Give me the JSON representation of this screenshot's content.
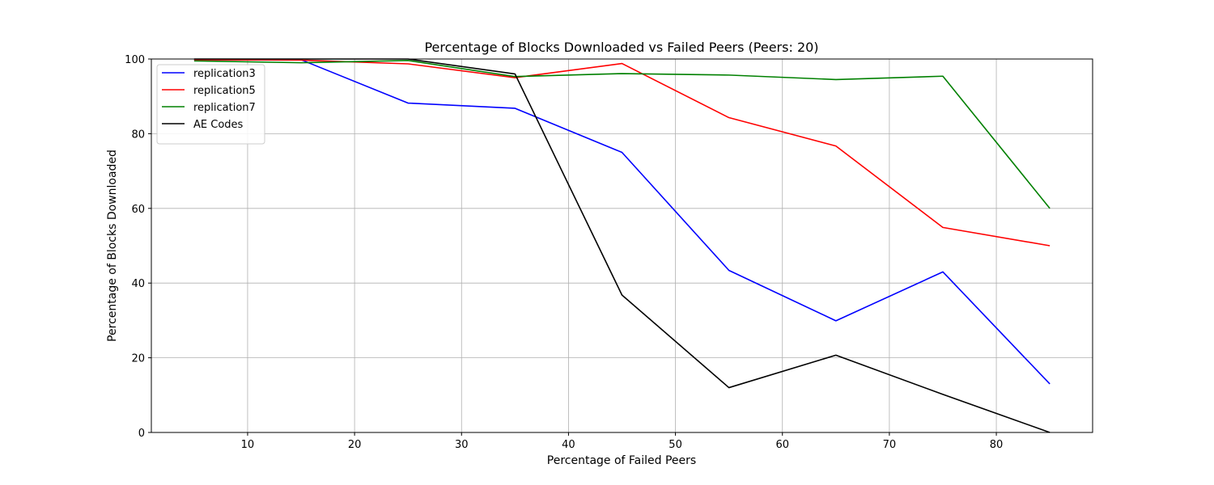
{
  "chart_data": {
    "type": "line",
    "title": "Percentage of Blocks Downloaded vs Failed Peers (Peers: 20)",
    "xlabel": "Percentage of Failed Peers",
    "ylabel": "Percentage of Blocks Downloaded",
    "xlim": [
      1,
      89
    ],
    "ylim": [
      0,
      100
    ],
    "xticks": [
      10,
      20,
      30,
      40,
      50,
      60,
      70,
      80
    ],
    "yticks": [
      0,
      20,
      40,
      60,
      80,
      100
    ],
    "grid": true,
    "legend_position": "top-left",
    "x": [
      5,
      15,
      25,
      35,
      45,
      55,
      65,
      75,
      85
    ],
    "series": [
      {
        "name": "replication3",
        "color": "#0000ff",
        "values": [
          99.8,
          99.8,
          88.2,
          86.8,
          75.0,
          43.4,
          29.9,
          43.0,
          13.0
        ]
      },
      {
        "name": "replication5",
        "color": "#ff0000",
        "values": [
          99.8,
          99.7,
          98.7,
          95.0,
          98.8,
          84.3,
          76.7,
          54.9,
          50.0
        ]
      },
      {
        "name": "replication7",
        "color": "#008000",
        "values": [
          99.5,
          99.0,
          99.6,
          95.3,
          96.1,
          95.7,
          94.5,
          95.4,
          60.0
        ]
      },
      {
        "name": "AE Codes",
        "color": "#000000",
        "values": [
          100.0,
          100.0,
          100.0,
          96.0,
          36.8,
          12.0,
          20.7,
          10.2,
          0.0
        ]
      }
    ]
  }
}
